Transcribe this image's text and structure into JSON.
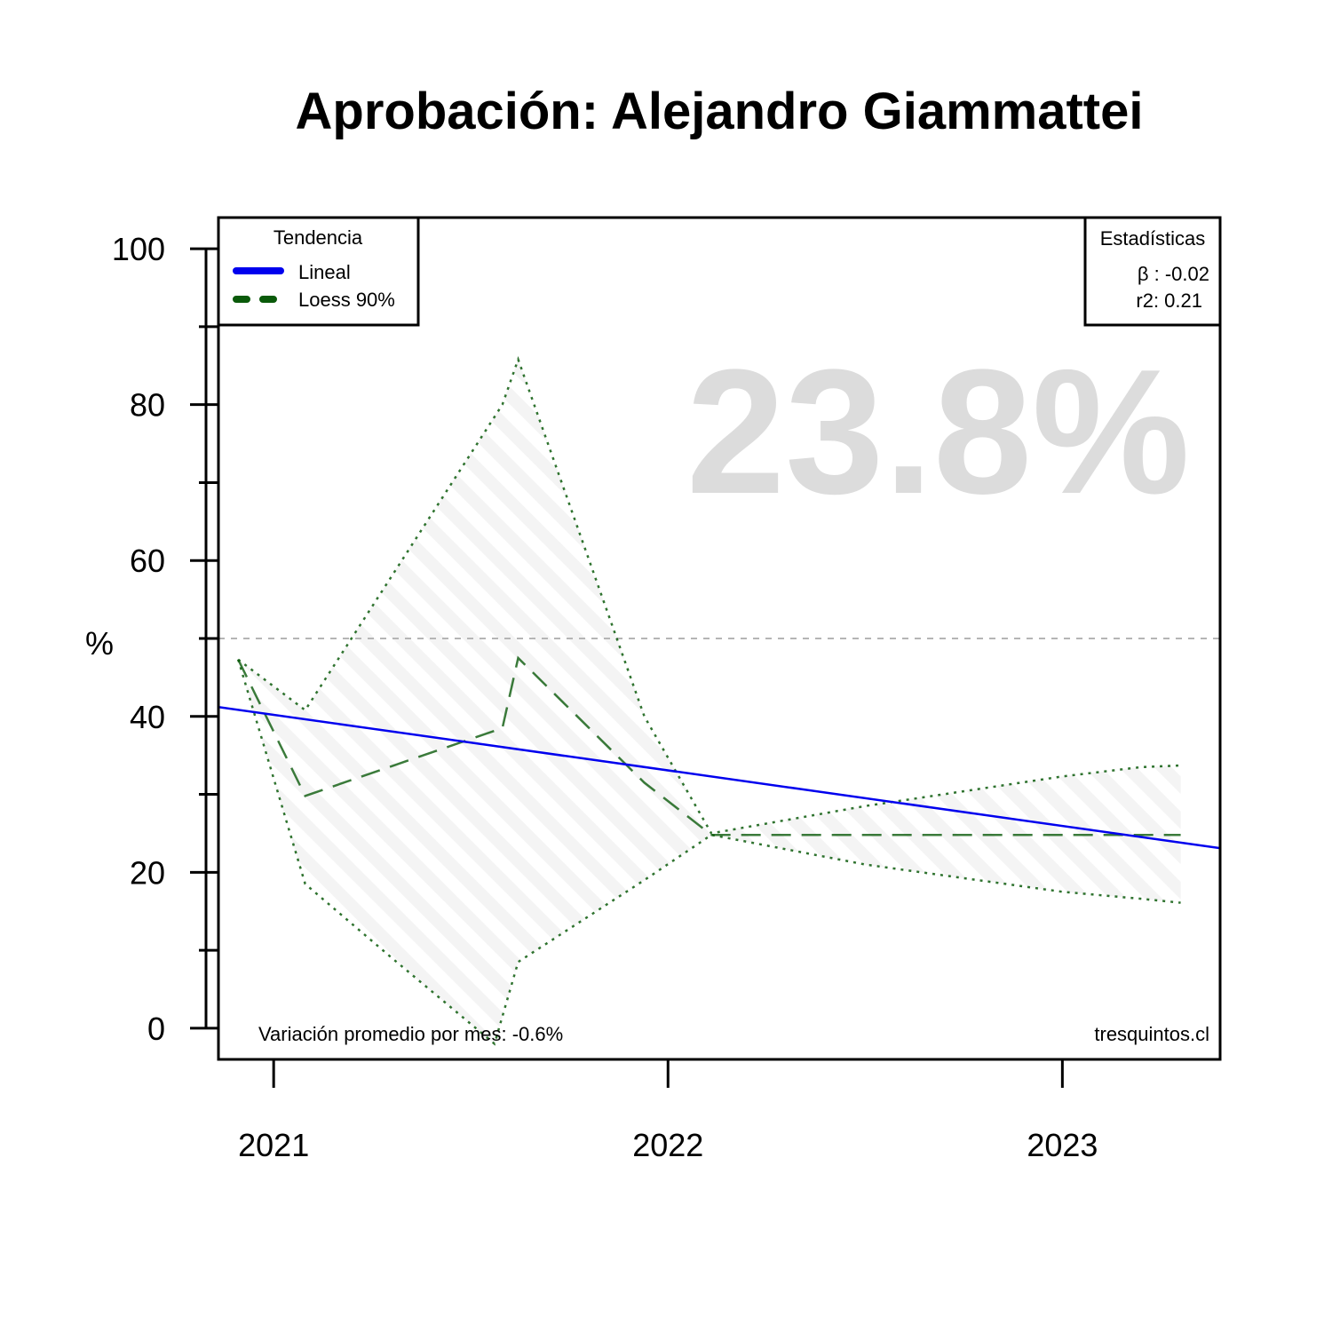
{
  "chart_data": {
    "type": "line",
    "title": "Aprobación: Alejandro Giammattei",
    "ylabel": "%",
    "xlabel": "",
    "ylim": [
      -4,
      104
    ],
    "yticks": [
      0,
      20,
      40,
      60,
      80,
      100
    ],
    "xlim": [
      2020.86,
      2023.4
    ],
    "xticks": [
      {
        "label": "2021",
        "value": 2021
      },
      {
        "label": "2022",
        "value": 2022
      },
      {
        "label": "2023",
        "value": 2023
      }
    ],
    "reference_line": 50,
    "headline_value": "23.8%",
    "legend": {
      "title": "Tendencia",
      "position": "top-left",
      "items": [
        {
          "label": "Lineal",
          "color": "#0000ee",
          "style": "solid"
        },
        {
          "label": "Loess 90%",
          "color": "#0a5a0a",
          "style": "dashed"
        }
      ]
    },
    "stats": {
      "title": "Estadísticas",
      "position": "top-right",
      "lines": [
        "β : -0.02",
        "r2: 0.21"
      ]
    },
    "footer_left": "Variación promedio por mes: -0.6%",
    "footer_right": "tresquintos.cl",
    "series": [
      {
        "name": "Lineal",
        "style": "solid",
        "color": "#0000ee",
        "x": [
          2020.86,
          2023.4
        ],
        "y": [
          41.2,
          23.1
        ]
      },
      {
        "name": "Loess 90%",
        "style": "dashed",
        "color": "#0a5a0a",
        "x": [
          2020.91,
          2021.08,
          2021.58,
          2021.62,
          2021.94,
          2022.11,
          2022.5,
          2023.0,
          2023.3
        ],
        "y": [
          47.3,
          29.8,
          38.5,
          47.5,
          31.5,
          24.8,
          24.8,
          24.8,
          24.8
        ]
      },
      {
        "name": "upper",
        "style": "dotted",
        "color": "#0a5a0a",
        "x": [
          2020.91,
          2021.08,
          2021.58,
          2021.62,
          2021.94,
          2022.11,
          2022.5,
          2023.0,
          2023.2,
          2023.3
        ],
        "y": [
          47.3,
          40.8,
          80.0,
          85.8,
          40.0,
          25.0,
          28.5,
          32.3,
          33.5,
          33.7
        ]
      },
      {
        "name": "lower",
        "style": "dotted",
        "color": "#0a5a0a",
        "x": [
          2020.91,
          2021.08,
          2021.3,
          2021.56,
          2021.62,
          2021.94,
          2022.11,
          2022.5,
          2023.0,
          2023.2,
          2023.3
        ],
        "y": [
          47.3,
          18.5,
          9.0,
          -2.0,
          8.5,
          19.0,
          24.8,
          21.0,
          17.5,
          16.6,
          16.1
        ]
      }
    ]
  }
}
